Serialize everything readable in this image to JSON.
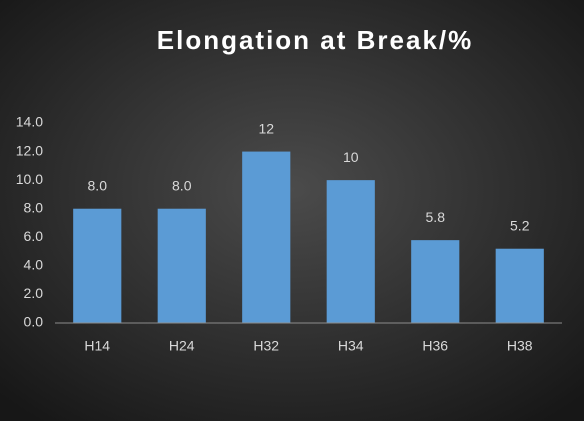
{
  "chart_data": {
    "type": "bar",
    "title": "Elongation at Break/%",
    "categories": [
      "H14",
      "H24",
      "H32",
      "H34",
      "H36",
      "H38"
    ],
    "values": [
      8,
      8,
      12,
      10,
      5.8,
      5.2
    ],
    "value_labels": [
      "8.0",
      "8.0",
      "12",
      "10",
      "5.8",
      "5.2"
    ],
    "color": "#5b9bd5",
    "ylim": [
      0,
      14
    ],
    "yticks": [
      {
        "value": 0,
        "label": "0.0"
      },
      {
        "value": 2,
        "label": "2.0"
      },
      {
        "value": 4,
        "label": "4.0"
      },
      {
        "value": 6,
        "label": "6.0"
      },
      {
        "value": 8,
        "label": "8.0"
      },
      {
        "value": 10,
        "label": "10.0"
      },
      {
        "value": 12,
        "label": "12.0"
      },
      {
        "value": 14,
        "label": "14.0"
      }
    ],
    "grid": false
  }
}
